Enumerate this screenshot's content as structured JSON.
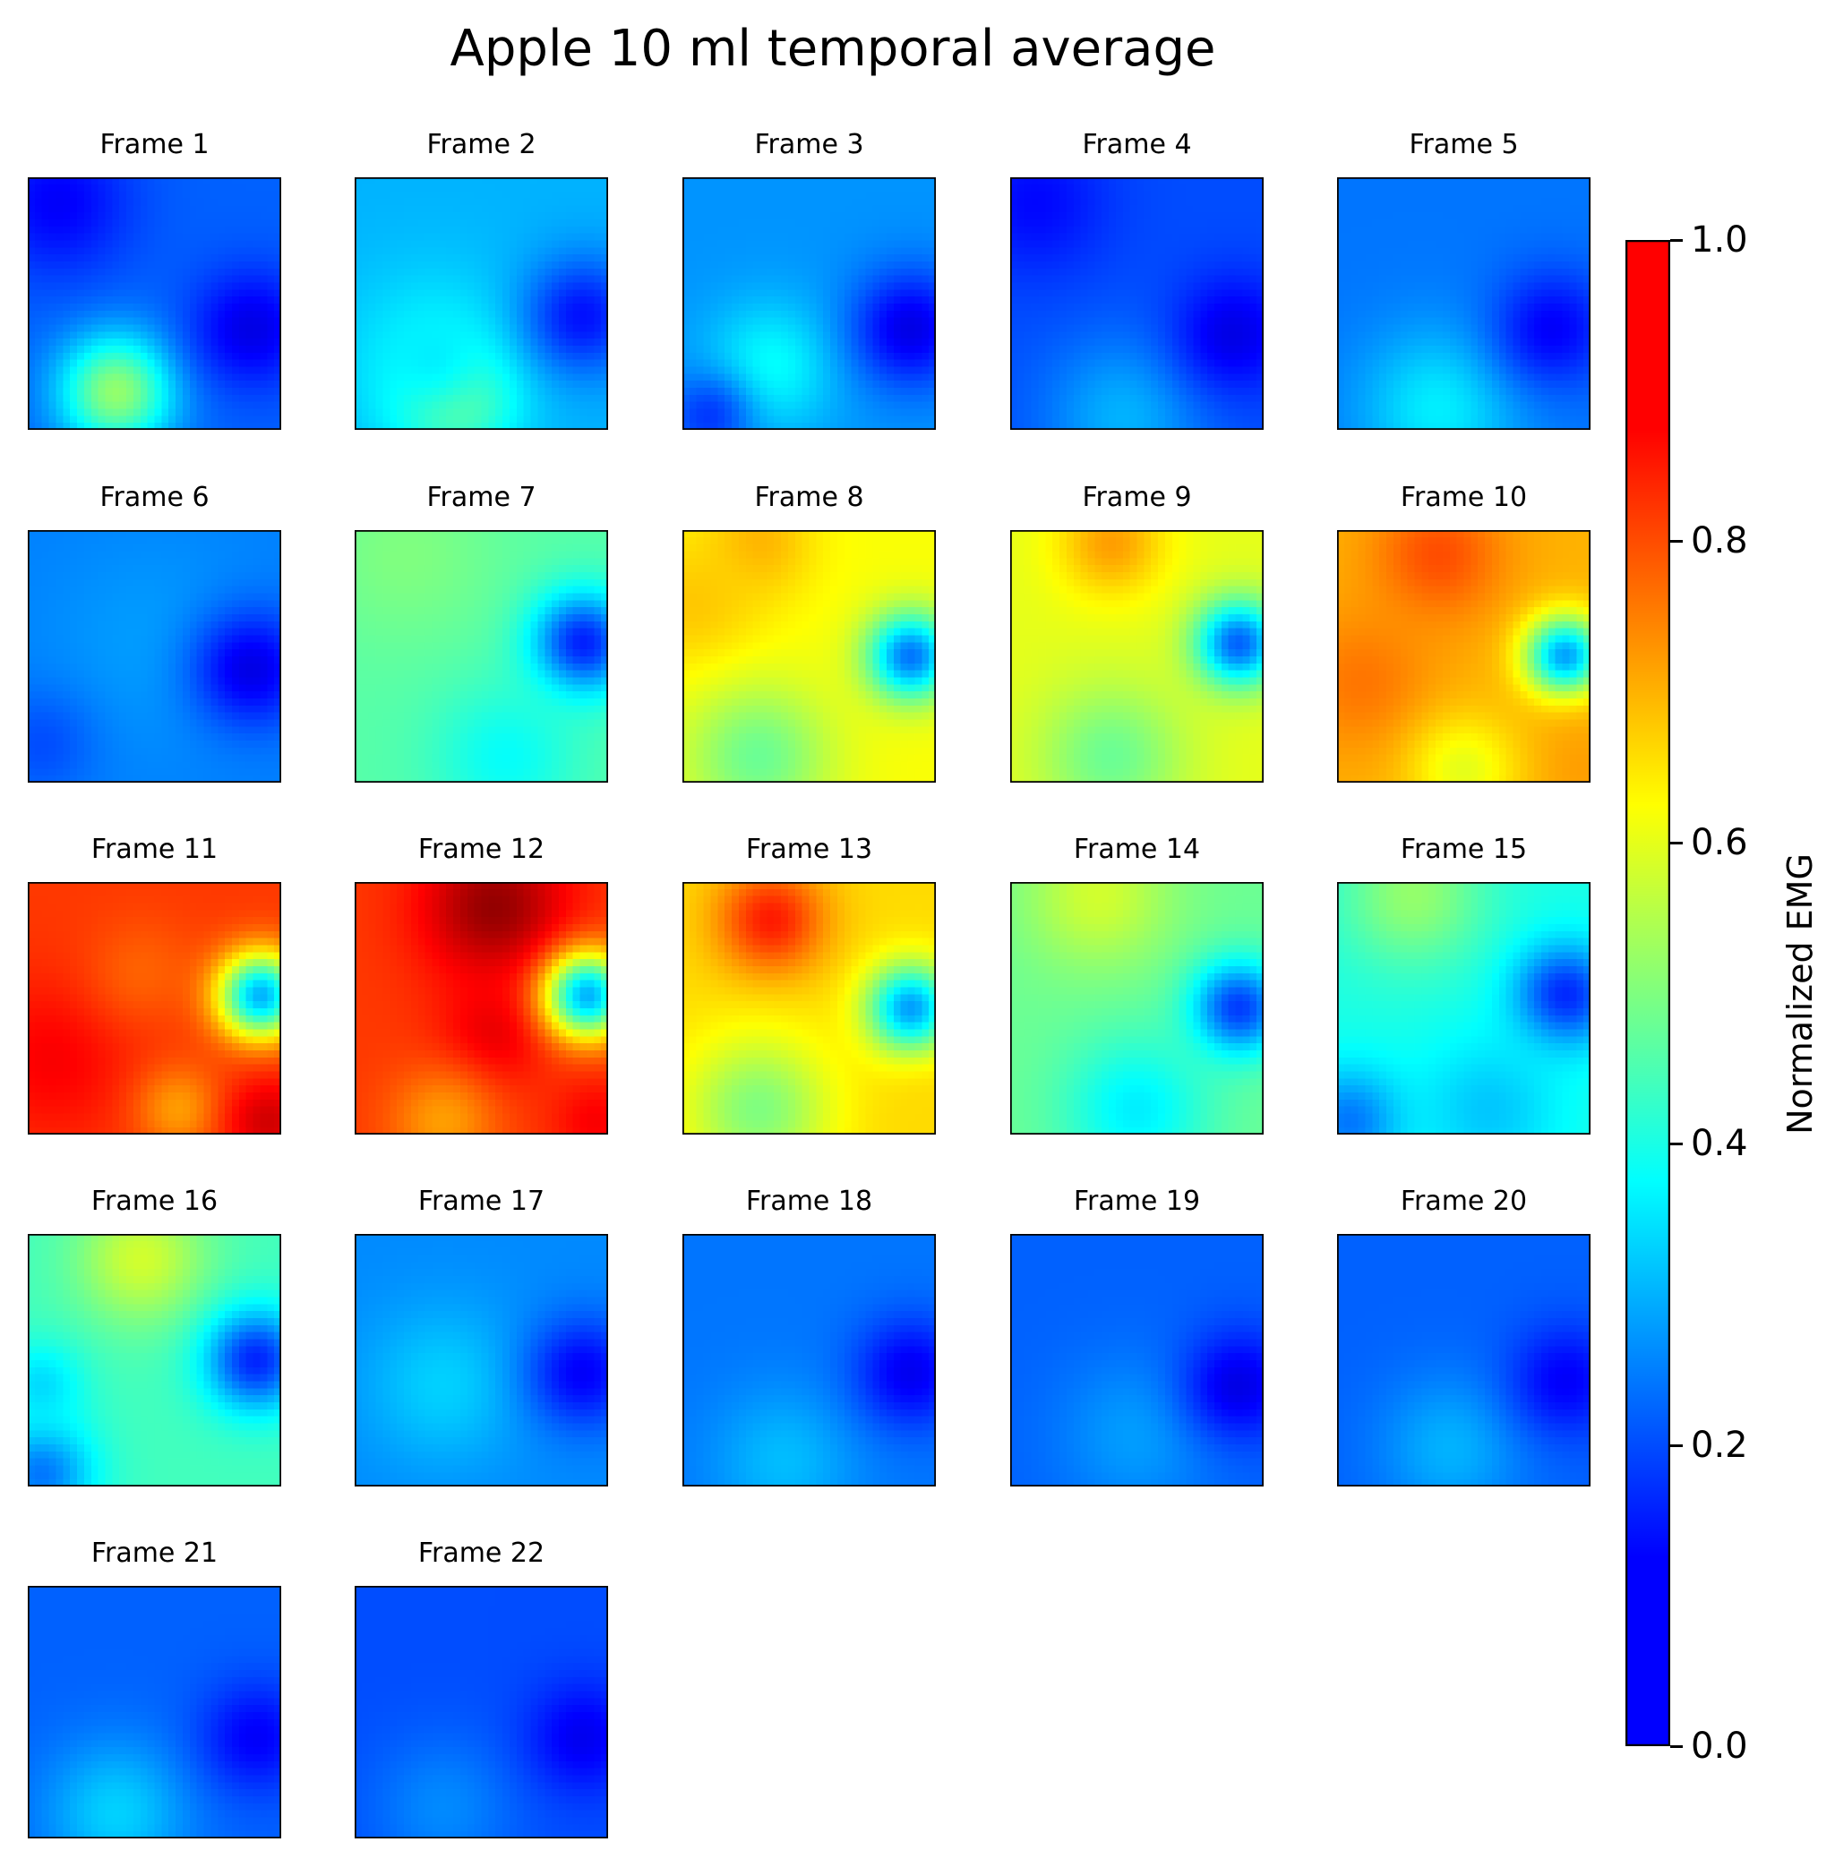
{
  "chart_data": {
    "type": "heatmap",
    "title": "Apple 10 ml temporal average",
    "colormap": "jet",
    "grid": false,
    "colorbar": {
      "label": "Normalized EMG",
      "range": [
        0,
        1
      ],
      "ticks": [
        "0.0",
        "0.2",
        "0.4",
        "0.6",
        "0.8",
        "1.0"
      ],
      "tick_values": [
        0.0,
        0.2,
        0.4,
        0.6,
        0.8,
        1.0
      ],
      "placement": "right"
    },
    "panels": [
      {
        "title": "Frame 1",
        "base": 0.22,
        "blobs": [
          {
            "cx": 0.35,
            "cy": 0.85,
            "v": 0.52,
            "s": 0.16
          },
          {
            "cx": 0.12,
            "cy": 0.1,
            "v": 0.12,
            "s": 0.2
          },
          {
            "cx": 0.88,
            "cy": 0.6,
            "v": 0.1,
            "s": 0.16
          }
        ]
      },
      {
        "title": "Frame 2",
        "base": 0.3,
        "blobs": [
          {
            "cx": 0.38,
            "cy": 0.85,
            "v": 0.6,
            "s": 0.16
          },
          {
            "cx": 0.3,
            "cy": 0.7,
            "v": 0.36,
            "s": 0.25
          },
          {
            "cx": 0.9,
            "cy": 0.55,
            "v": 0.14,
            "s": 0.16
          }
        ]
      },
      {
        "title": "Frame 3",
        "base": 0.27,
        "blobs": [
          {
            "cx": 0.35,
            "cy": 0.75,
            "v": 0.38,
            "s": 0.18
          },
          {
            "cx": 0.1,
            "cy": 0.95,
            "v": 0.18,
            "s": 0.12
          },
          {
            "cx": 0.9,
            "cy": 0.6,
            "v": 0.1,
            "s": 0.16
          }
        ]
      },
      {
        "title": "Frame 4",
        "base": 0.2,
        "blobs": [
          {
            "cx": 0.45,
            "cy": 0.95,
            "v": 0.3,
            "s": 0.22
          },
          {
            "cx": 0.1,
            "cy": 0.1,
            "v": 0.13,
            "s": 0.2
          },
          {
            "cx": 0.88,
            "cy": 0.62,
            "v": 0.1,
            "s": 0.16
          }
        ]
      },
      {
        "title": "Frame 5",
        "base": 0.24,
        "blobs": [
          {
            "cx": 0.4,
            "cy": 0.92,
            "v": 0.36,
            "s": 0.22
          },
          {
            "cx": 0.85,
            "cy": 0.6,
            "v": 0.12,
            "s": 0.16
          }
        ]
      },
      {
        "title": "Frame 6",
        "base": 0.25,
        "blobs": [
          {
            "cx": 0.5,
            "cy": 0.45,
            "v": 0.28,
            "s": 0.3
          },
          {
            "cx": 0.88,
            "cy": 0.55,
            "v": 0.1,
            "s": 0.16
          },
          {
            "cx": 0.05,
            "cy": 0.85,
            "v": 0.2,
            "s": 0.15
          }
        ]
      },
      {
        "title": "Frame 7",
        "base": 0.46,
        "blobs": [
          {
            "cx": 0.2,
            "cy": 0.1,
            "v": 0.5,
            "s": 0.25
          },
          {
            "cx": 0.9,
            "cy": 0.45,
            "v": 0.15,
            "s": 0.14
          },
          {
            "cx": 0.6,
            "cy": 0.9,
            "v": 0.38,
            "s": 0.2
          }
        ]
      },
      {
        "title": "Frame 8",
        "base": 0.62,
        "blobs": [
          {
            "cx": 0.3,
            "cy": 0.05,
            "v": 0.7,
            "s": 0.15
          },
          {
            "cx": 0.05,
            "cy": 0.3,
            "v": 0.68,
            "s": 0.2
          },
          {
            "cx": 0.9,
            "cy": 0.5,
            "v": 0.24,
            "s": 0.12
          },
          {
            "cx": 0.3,
            "cy": 0.9,
            "v": 0.48,
            "s": 0.2
          }
        ]
      },
      {
        "title": "Frame 9",
        "base": 0.6,
        "blobs": [
          {
            "cx": 0.4,
            "cy": 0.05,
            "v": 0.72,
            "s": 0.15
          },
          {
            "cx": 0.9,
            "cy": 0.45,
            "v": 0.22,
            "s": 0.12
          },
          {
            "cx": 0.4,
            "cy": 0.9,
            "v": 0.48,
            "s": 0.2
          }
        ]
      },
      {
        "title": "Frame 10",
        "base": 0.7,
        "blobs": [
          {
            "cx": 0.4,
            "cy": 0.1,
            "v": 0.8,
            "s": 0.18
          },
          {
            "cx": 0.1,
            "cy": 0.6,
            "v": 0.76,
            "s": 0.2
          },
          {
            "cx": 0.9,
            "cy": 0.5,
            "v": 0.28,
            "s": 0.11
          },
          {
            "cx": 0.95,
            "cy": 0.95,
            "v": 0.72,
            "s": 0.15
          },
          {
            "cx": 0.5,
            "cy": 0.95,
            "v": 0.6,
            "s": 0.15
          }
        ]
      },
      {
        "title": "Frame 11",
        "base": 0.82,
        "blobs": [
          {
            "cx": 0.1,
            "cy": 0.7,
            "v": 0.88,
            "s": 0.22
          },
          {
            "cx": 0.45,
            "cy": 0.35,
            "v": 0.78,
            "s": 0.15
          },
          {
            "cx": 0.92,
            "cy": 0.45,
            "v": 0.3,
            "s": 0.12
          },
          {
            "cx": 0.6,
            "cy": 0.9,
            "v": 0.72,
            "s": 0.12
          },
          {
            "cx": 0.95,
            "cy": 0.95,
            "v": 0.92,
            "s": 0.12
          }
        ]
      },
      {
        "title": "Frame 12",
        "base": 0.82,
        "blobs": [
          {
            "cx": 0.55,
            "cy": 0.1,
            "v": 0.98,
            "s": 0.2
          },
          {
            "cx": 0.55,
            "cy": 0.6,
            "v": 0.9,
            "s": 0.15
          },
          {
            "cx": 0.92,
            "cy": 0.45,
            "v": 0.3,
            "s": 0.12
          },
          {
            "cx": 0.35,
            "cy": 0.95,
            "v": 0.72,
            "s": 0.15
          },
          {
            "cx": 0.95,
            "cy": 0.95,
            "v": 0.88,
            "s": 0.12
          }
        ]
      },
      {
        "title": "Frame 13",
        "base": 0.66,
        "blobs": [
          {
            "cx": 0.35,
            "cy": 0.15,
            "v": 0.85,
            "s": 0.15
          },
          {
            "cx": 0.9,
            "cy": 0.5,
            "v": 0.28,
            "s": 0.12
          },
          {
            "cx": 0.3,
            "cy": 0.9,
            "v": 0.5,
            "s": 0.2
          },
          {
            "cx": 0.95,
            "cy": 0.95,
            "v": 0.66,
            "s": 0.12
          }
        ]
      },
      {
        "title": "Frame 14",
        "base": 0.48,
        "blobs": [
          {
            "cx": 0.35,
            "cy": 0.05,
            "v": 0.58,
            "s": 0.2
          },
          {
            "cx": 0.9,
            "cy": 0.5,
            "v": 0.18,
            "s": 0.13
          },
          {
            "cx": 0.5,
            "cy": 0.9,
            "v": 0.36,
            "s": 0.2
          }
        ]
      },
      {
        "title": "Frame 15",
        "base": 0.4,
        "blobs": [
          {
            "cx": 0.3,
            "cy": 0.05,
            "v": 0.52,
            "s": 0.2
          },
          {
            "cx": 0.9,
            "cy": 0.45,
            "v": 0.16,
            "s": 0.14
          },
          {
            "cx": 0.05,
            "cy": 0.95,
            "v": 0.24,
            "s": 0.15
          },
          {
            "cx": 0.6,
            "cy": 0.9,
            "v": 0.32,
            "s": 0.2
          }
        ]
      },
      {
        "title": "Frame 16",
        "base": 0.44,
        "blobs": [
          {
            "cx": 0.45,
            "cy": 0.1,
            "v": 0.58,
            "s": 0.18
          },
          {
            "cx": 0.9,
            "cy": 0.5,
            "v": 0.16,
            "s": 0.14
          },
          {
            "cx": 0.05,
            "cy": 0.95,
            "v": 0.24,
            "s": 0.15
          },
          {
            "cx": 0.05,
            "cy": 0.6,
            "v": 0.34,
            "s": 0.12
          }
        ]
      },
      {
        "title": "Frame 17",
        "base": 0.26,
        "blobs": [
          {
            "cx": 0.35,
            "cy": 0.6,
            "v": 0.33,
            "s": 0.22
          },
          {
            "cx": 0.9,
            "cy": 0.55,
            "v": 0.12,
            "s": 0.15
          }
        ]
      },
      {
        "title": "Frame 18",
        "base": 0.24,
        "blobs": [
          {
            "cx": 0.4,
            "cy": 0.9,
            "v": 0.31,
            "s": 0.2
          },
          {
            "cx": 0.9,
            "cy": 0.55,
            "v": 0.11,
            "s": 0.15
          }
        ]
      },
      {
        "title": "Frame 19",
        "base": 0.22,
        "blobs": [
          {
            "cx": 0.5,
            "cy": 0.8,
            "v": 0.28,
            "s": 0.22
          },
          {
            "cx": 0.9,
            "cy": 0.6,
            "v": 0.1,
            "s": 0.15
          }
        ]
      },
      {
        "title": "Frame 20",
        "base": 0.22,
        "blobs": [
          {
            "cx": 0.45,
            "cy": 0.85,
            "v": 0.3,
            "s": 0.2
          },
          {
            "cx": 0.9,
            "cy": 0.58,
            "v": 0.12,
            "s": 0.15
          }
        ]
      },
      {
        "title": "Frame 21",
        "base": 0.22,
        "blobs": [
          {
            "cx": 0.35,
            "cy": 0.9,
            "v": 0.33,
            "s": 0.2
          },
          {
            "cx": 0.9,
            "cy": 0.6,
            "v": 0.12,
            "s": 0.15
          }
        ]
      },
      {
        "title": "Frame 22",
        "base": 0.2,
        "blobs": [
          {
            "cx": 0.35,
            "cy": 0.88,
            "v": 0.26,
            "s": 0.2
          },
          {
            "cx": 0.9,
            "cy": 0.6,
            "v": 0.11,
            "s": 0.15
          }
        ]
      }
    ]
  }
}
